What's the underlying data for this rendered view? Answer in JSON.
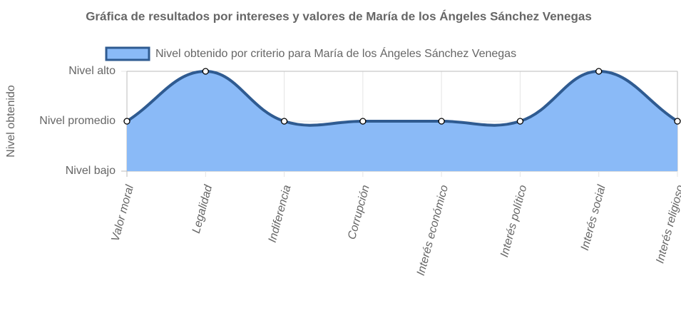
{
  "chart_data": {
    "type": "area",
    "title": "Gráfica de resultados por intereses y valores de María de los Ángeles Sánchez Venegas",
    "y_label": "Nivel obtenido",
    "categories": [
      "Valor moral",
      "Legalidad",
      "Indiferencia",
      "Corrupción",
      "Interés económico",
      "Interés político",
      "Interés social",
      "Interés religioso"
    ],
    "series": [
      {
        "name": "Nivel obtenido por criterio para María de los Ángeles Sánchez Venegas",
        "color": "#2f5b91",
        "fill": "#8abaf7",
        "values": [
          2,
          3,
          2,
          2,
          2,
          2,
          3,
          2
        ]
      }
    ],
    "ylim": [
      1,
      3
    ],
    "yticks": [
      {
        "value": 1,
        "label": "Nivel bajo"
      },
      {
        "value": 2,
        "label": "Nivel promedio"
      },
      {
        "value": 3,
        "label": "Nivel alto"
      }
    ],
    "grid": true,
    "legend": "top"
  }
}
